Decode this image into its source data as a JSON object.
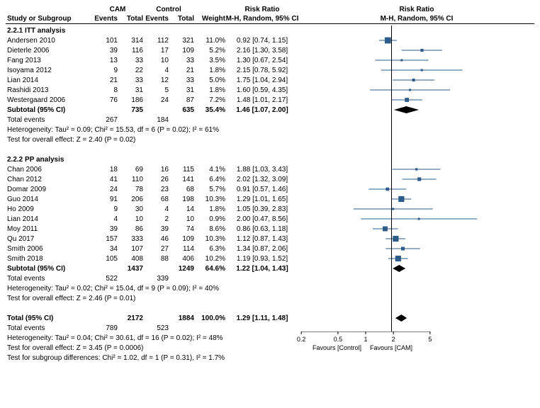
{
  "headers": {
    "study": "Study or Subgroup",
    "cam": "CAM",
    "control": "Control",
    "events": "Events",
    "total": "Total",
    "weight": "Weight",
    "rr": "Risk Ratio",
    "rr_sub": "M-H, Random, 95% CI",
    "rr_plot": "Risk Ratio",
    "rr_plot_sub": "M-H, Random, 95% CI"
  },
  "plot": {
    "xmin": 0.1,
    "xmax": 10,
    "ticks": [
      0.2,
      0.5,
      1,
      2,
      5
    ],
    "tick_labels": [
      "0.2",
      "0.5",
      "1",
      "2",
      "5"
    ],
    "axis_left": "Favours [Control]",
    "axis_right": "Favours [CAM]",
    "marker_color": "#2e5b8a",
    "diamond_color": "#000000",
    "line_color": "#2e5b8a"
  },
  "subgroups": [
    {
      "title": "2.2.1 ITT analysis",
      "rows": [
        {
          "study": "Andersen 2010",
          "e1": 101,
          "t1": 314,
          "e2": 112,
          "t2": 321,
          "w": "11.0%",
          "rr": 0.92,
          "lo": 0.74,
          "hi": 1.15,
          "txt": "0.92 [0.74, 1.15]"
        },
        {
          "study": "Dieterle 2006",
          "e1": 39,
          "t1": 116,
          "e2": 17,
          "t2": 109,
          "w": "5.2%",
          "rr": 2.16,
          "lo": 1.3,
          "hi": 3.58,
          "txt": "2.16 [1.30, 3.58]"
        },
        {
          "study": "Fang 2013",
          "e1": 13,
          "t1": 33,
          "e2": 10,
          "t2": 33,
          "w": "3.5%",
          "rr": 1.3,
          "lo": 0.67,
          "hi": 2.54,
          "txt": "1.30 [0.67, 2.54]"
        },
        {
          "study": "Isoyama 2012",
          "e1": 9,
          "t1": 22,
          "e2": 4,
          "t2": 21,
          "w": "1.8%",
          "rr": 2.15,
          "lo": 0.78,
          "hi": 5.92,
          "txt": "2.15 [0.78, 5.92]"
        },
        {
          "study": "Lian 2014",
          "e1": 21,
          "t1": 33,
          "e2": 12,
          "t2": 33,
          "w": "5.0%",
          "rr": 1.75,
          "lo": 1.04,
          "hi": 2.94,
          "txt": "1.75 [1.04, 2.94]"
        },
        {
          "study": "Rashidi 2013",
          "e1": 8,
          "t1": 31,
          "e2": 5,
          "t2": 31,
          "w": "1.8%",
          "rr": 1.6,
          "lo": 0.59,
          "hi": 4.35,
          "txt": "1.60 [0.59, 4.35]"
        },
        {
          "study": "Westergaard 2006",
          "e1": 76,
          "t1": 186,
          "e2": 24,
          "t2": 87,
          "w": "7.2%",
          "rr": 1.48,
          "lo": 1.01,
          "hi": 2.17,
          "txt": "1.48 [1.01, 2.17]"
        }
      ],
      "subtotal": {
        "label": "Subtotal (95% CI)",
        "t1": 735,
        "t2": 635,
        "w": "35.4%",
        "rr": 1.46,
        "lo": 1.07,
        "hi": 2.0,
        "txt": "1.46 [1.07, 2.00]"
      },
      "totals": {
        "label": "Total events",
        "e1": 267,
        "e2": 184
      },
      "het": "Heterogeneity: Tau² = 0.09; Chi² = 15.53, df = 6 (P = 0.02); I² = 61%",
      "eff": "Test for overall effect: Z = 2.40 (P = 0.02)"
    },
    {
      "title": "2.2.2 PP analysis",
      "rows": [
        {
          "study": "Chan 2006",
          "e1": 18,
          "t1": 69,
          "e2": 16,
          "t2": 115,
          "w": "4.1%",
          "rr": 1.88,
          "lo": 1.03,
          "hi": 3.43,
          "txt": "1.88 [1.03, 3.43]"
        },
        {
          "study": "Chan 2012",
          "e1": 41,
          "t1": 110,
          "e2": 26,
          "t2": 141,
          "w": "6.4%",
          "rr": 2.02,
          "lo": 1.32,
          "hi": 3.09,
          "txt": "2.02 [1.32, 3.09]"
        },
        {
          "study": "Domar 2009",
          "e1": 24,
          "t1": 78,
          "e2": 23,
          "t2": 68,
          "w": "5.7%",
          "rr": 0.91,
          "lo": 0.57,
          "hi": 1.46,
          "txt": "0.91 [0.57, 1.46]"
        },
        {
          "study": "Guo 2014",
          "e1": 91,
          "t1": 206,
          "e2": 68,
          "t2": 198,
          "w": "10.3%",
          "rr": 1.29,
          "lo": 1.01,
          "hi": 1.65,
          "txt": "1.29 [1.01, 1.65]"
        },
        {
          "study": "Ho 2009",
          "e1": 9,
          "t1": 30,
          "e2": 4,
          "t2": 14,
          "w": "1.8%",
          "rr": 1.05,
          "lo": 0.39,
          "hi": 2.83,
          "txt": "1.05 [0.39, 2.83]"
        },
        {
          "study": "Lian 2014",
          "e1": 4,
          "t1": 10,
          "e2": 2,
          "t2": 10,
          "w": "0.9%",
          "rr": 2.0,
          "lo": 0.47,
          "hi": 8.56,
          "txt": "2.00 [0.47, 8.56]"
        },
        {
          "study": "Moy 2011",
          "e1": 39,
          "t1": 86,
          "e2": 39,
          "t2": 74,
          "w": "8.6%",
          "rr": 0.86,
          "lo": 0.63,
          "hi": 1.18,
          "txt": "0.86 [0.63, 1.18]"
        },
        {
          "study": "Qu 2017",
          "e1": 157,
          "t1": 333,
          "e2": 46,
          "t2": 109,
          "w": "10.3%",
          "rr": 1.12,
          "lo": 0.87,
          "hi": 1.43,
          "txt": "1.12 [0.87, 1.43]"
        },
        {
          "study": "Smith 2006",
          "e1": 34,
          "t1": 107,
          "e2": 27,
          "t2": 114,
          "w": "6.3%",
          "rr": 1.34,
          "lo": 0.87,
          "hi": 2.06,
          "txt": "1.34 [0.87, 2.06]"
        },
        {
          "study": "Smith 2018",
          "e1": 105,
          "t1": 408,
          "e2": 88,
          "t2": 406,
          "w": "10.2%",
          "rr": 1.19,
          "lo": 0.93,
          "hi": 1.52,
          "txt": "1.19 [0.93, 1.52]"
        }
      ],
      "subtotal": {
        "label": "Subtotal (95% CI)",
        "t1": 1437,
        "t2": 1249,
        "w": "64.6%",
        "rr": 1.22,
        "lo": 1.04,
        "hi": 1.43,
        "txt": "1.22 [1.04, 1.43]"
      },
      "totals": {
        "label": "Total events",
        "e1": 522,
        "e2": 339
      },
      "het": "Heterogeneity: Tau² = 0.02; Chi² = 15.04, df = 9 (P = 0.09); I² = 40%",
      "eff": "Test for overall effect: Z = 2.46 (P = 0.01)"
    }
  ],
  "overall": {
    "label": "Total (95% CI)",
    "t1": 2172,
    "t2": 1884,
    "w": "100.0%",
    "rr": 1.29,
    "lo": 1.11,
    "hi": 1.48,
    "txt": "1.29 [1.11, 1.48]",
    "totals": {
      "label": "Total events",
      "e1": 789,
      "e2": 523
    },
    "het": "Heterogeneity: Tau² = 0.04; Chi² = 30.61, df = 16 (P = 0.02); I² = 48%",
    "eff": "Test for overall effect: Z = 3.45 (P = 0.0006)",
    "subdiff": "Test for subgroup differences: Chi² = 1.02, df = 1 (P = 0.31), I² = 1.7%"
  }
}
